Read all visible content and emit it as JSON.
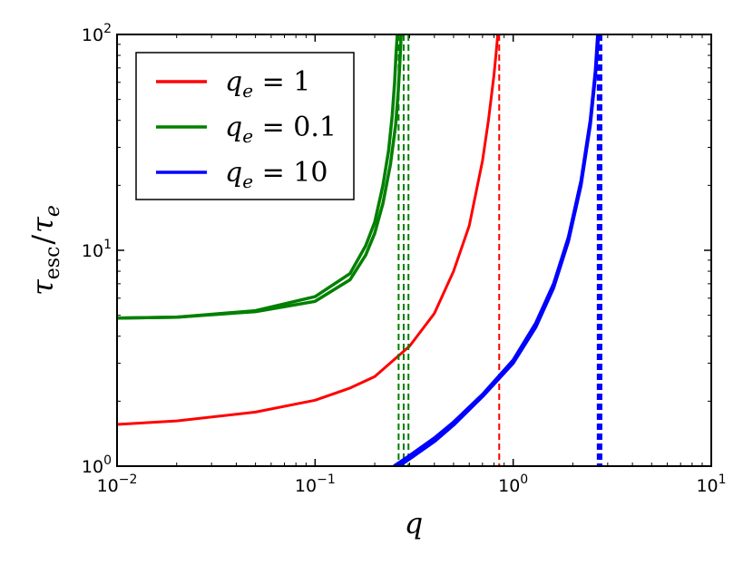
{
  "chart_data": {
    "type": "line",
    "title": "",
    "xlabel": "q",
    "ylabel_main": "τ",
    "ylabel_sub": "esc",
    "ylabel_slash": "/",
    "ylabel_main2": "τ",
    "ylabel_sub2": "e",
    "xscale": "log",
    "yscale": "log",
    "xlim": [
      0.01,
      10
    ],
    "ylim": [
      1,
      100
    ],
    "xticks": [
      {
        "value": 0.01,
        "base": "10",
        "exp": "-2"
      },
      {
        "value": 0.1,
        "base": "10",
        "exp": "-1"
      },
      {
        "value": 1,
        "base": "10",
        "exp": "0"
      },
      {
        "value": 10,
        "base": "10",
        "exp": "1"
      }
    ],
    "yticks": [
      {
        "value": 1,
        "base": "10",
        "exp": "0"
      },
      {
        "value": 10,
        "base": "10",
        "exp": "1"
      },
      {
        "value": 100,
        "base": "10",
        "exp": "2"
      }
    ],
    "grid": false,
    "legend_position": "top-left",
    "series": [
      {
        "name": "q_e = 1",
        "legend": {
          "sym": "q",
          "sub": "e",
          "rest": " = 1"
        },
        "color": "#ff0000",
        "curves": [
          {
            "x": [
              0.01,
              0.02,
              0.05,
              0.1,
              0.15,
              0.2,
              0.3,
              0.4,
              0.5,
              0.6,
              0.7,
              0.75,
              0.8,
              0.82,
              0.836
            ],
            "y": [
              1.56,
              1.62,
              1.78,
              2.02,
              2.3,
              2.6,
              3.6,
              5.1,
              8.0,
              13.0,
              26.0,
              40.0,
              65.0,
              82.0,
              100.0
            ],
            "width": 3
          }
        ],
        "asymptotes": [
          {
            "x": 0.85,
            "width": 2
          }
        ]
      },
      {
        "name": "q_e = 0.1",
        "legend": {
          "sym": "q",
          "sub": "e",
          "rest": " = 0.1"
        },
        "color": "#008000",
        "curves": [
          {
            "x": [
              0.01,
              0.02,
              0.05,
              0.1,
              0.15,
              0.18,
              0.2,
              0.22,
              0.235,
              0.245,
              0.252,
              0.256,
              0.26
            ],
            "y": [
              4.85,
              4.9,
              5.25,
              6.1,
              7.8,
              10.5,
              13.5,
              20.0,
              29.0,
              42.0,
              60.0,
              80.0,
              100.0
            ],
            "width": 3.5
          },
          {
            "x": [
              0.01,
              0.02,
              0.05,
              0.1,
              0.15,
              0.18,
              0.2,
              0.22,
              0.24,
              0.255,
              0.263,
              0.268,
              0.272
            ],
            "y": [
              4.85,
              4.9,
              5.2,
              5.8,
              7.3,
              9.5,
              12.0,
              16.5,
              25.0,
              38.0,
              55.0,
              75.0,
              100.0
            ],
            "width": 3.5
          }
        ],
        "asymptotes": [
          {
            "x": 0.264,
            "width": 2
          },
          {
            "x": 0.28,
            "width": 2
          },
          {
            "x": 0.296,
            "width": 2
          }
        ]
      },
      {
        "name": "q_e = 10",
        "legend": {
          "sym": "q",
          "sub": "e",
          "rest": " = 10"
        },
        "color": "#0000ff",
        "curves": [
          {
            "x": [
              0.25,
              0.3,
              0.4,
              0.5,
              0.7,
              1.0,
              1.3,
              1.6,
              1.9,
              2.2,
              2.45,
              2.6,
              2.67
            ],
            "y": [
              1.0,
              1.12,
              1.35,
              1.6,
              2.15,
              3.1,
              4.6,
              7.0,
              11.5,
              21.0,
              40.0,
              68.0,
              100.0
            ],
            "width": 3.5
          },
          {
            "x": [
              0.265,
              0.3,
              0.4,
              0.5,
              0.7,
              1.0,
              1.3,
              1.6,
              1.9,
              2.2,
              2.45,
              2.6,
              2.7
            ],
            "y": [
              1.0,
              1.08,
              1.3,
              1.55,
              2.1,
              3.0,
              4.4,
              6.7,
              11.0,
              20.0,
              38.0,
              64.0,
              100.0
            ],
            "width": 3.5
          }
        ],
        "asymptotes": [
          {
            "x": 2.7,
            "width": 4
          },
          {
            "x": 2.76,
            "width": 4
          }
        ]
      }
    ]
  }
}
